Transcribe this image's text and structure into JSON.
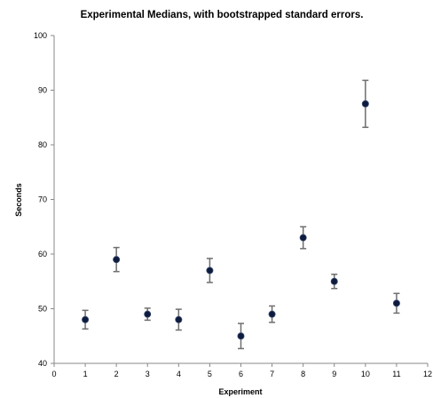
{
  "chart_data": {
    "type": "scatter",
    "title": "Experimental Medians, with bootstrapped standard errors.",
    "xlabel": "Experiment",
    "ylabel": "Seconds",
    "xlim": [
      0,
      12
    ],
    "ylim": [
      40,
      100
    ],
    "xticks": [
      "0",
      "1",
      "2",
      "3",
      "4",
      "5",
      "6",
      "7",
      "8",
      "9",
      "10",
      "11",
      "12"
    ],
    "yticks": [
      "40",
      "50",
      "60",
      "70",
      "80",
      "90",
      "100"
    ],
    "grid": false,
    "legend": "none",
    "colors": {
      "marker": "#0d1b3e",
      "error_bar": "#6e6e6e",
      "axis": "#888888"
    },
    "series": [
      {
        "x": [
          1,
          2,
          3,
          4,
          5,
          6,
          7,
          8,
          9,
          10,
          11
        ],
        "y": [
          48,
          59,
          49,
          48,
          57,
          45,
          49,
          63,
          55,
          87.5,
          51
        ],
        "error": [
          1.7,
          2.2,
          1.1,
          1.9,
          2.2,
          2.3,
          1.5,
          2.0,
          1.3,
          4.3,
          1.8
        ]
      }
    ]
  }
}
